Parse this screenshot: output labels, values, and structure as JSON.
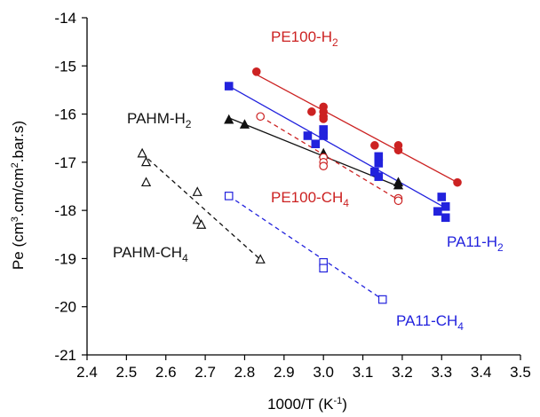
{
  "chart_data": {
    "type": "scatter",
    "xlabel": "1000/T (K-1)",
    "ylabel": "Pe (cm3.cm/cm2.bar.s)",
    "xlim": [
      2.4,
      3.5
    ],
    "ylim": [
      -21,
      -14
    ],
    "xticks": [
      "2.4",
      "2.5",
      "2.6",
      "2.7",
      "2.8",
      "2.9",
      "3.0",
      "3.1",
      "3.2",
      "3.3",
      "3.4",
      "3.5"
    ],
    "yticks": [
      "-14",
      "-15",
      "-16",
      "-17",
      "-18",
      "-19",
      "-20",
      "-21"
    ],
    "grid": false,
    "legend": "none",
    "series": [
      {
        "name": "PE100-H2",
        "label_main": "PE100-H",
        "label_sub": "2",
        "color": "#cc2222",
        "marker": "circle",
        "filled": true,
        "dashed": false,
        "points": [
          [
            2.83,
            -15.12
          ],
          [
            2.97,
            -15.95
          ],
          [
            3.0,
            -15.85
          ],
          [
            3.0,
            -15.95
          ],
          [
            3.0,
            -16.05
          ],
          [
            3.0,
            -16.1
          ],
          [
            3.13,
            -16.65
          ],
          [
            3.19,
            -16.65
          ],
          [
            3.19,
            -16.75
          ],
          [
            3.34,
            -17.42
          ]
        ],
        "fit": [
          [
            2.83,
            -15.18
          ],
          [
            3.34,
            -17.42
          ]
        ]
      },
      {
        "name": "PA11-H2",
        "label_main": "PA11-H",
        "label_sub": "2",
        "color": "#2222dd",
        "marker": "square",
        "filled": true,
        "dashed": false,
        "points": [
          [
            2.76,
            -15.42
          ],
          [
            2.96,
            -16.45
          ],
          [
            2.98,
            -16.62
          ],
          [
            3.0,
            -16.32
          ],
          [
            3.0,
            -16.45
          ],
          [
            3.14,
            -16.88
          ],
          [
            3.14,
            -17.02
          ],
          [
            3.13,
            -17.2
          ],
          [
            3.14,
            -17.3
          ],
          [
            3.3,
            -17.72
          ],
          [
            3.29,
            -18.02
          ],
          [
            3.31,
            -17.92
          ],
          [
            3.31,
            -18.15
          ]
        ],
        "fit": [
          [
            2.76,
            -15.42
          ],
          [
            3.31,
            -17.95
          ]
        ]
      },
      {
        "name": "PAHM-H2",
        "label_main": "PAHM-H",
        "label_sub": "2",
        "color": "#111111",
        "marker": "triangle",
        "filled": true,
        "dashed": false,
        "points": [
          [
            2.76,
            -16.12
          ],
          [
            2.8,
            -16.22
          ],
          [
            3.0,
            -16.82
          ],
          [
            3.19,
            -17.42
          ],
          [
            3.19,
            -17.48
          ]
        ],
        "fit": [
          [
            2.76,
            -16.08
          ],
          [
            3.19,
            -17.5
          ]
        ]
      },
      {
        "name": "PE100-CH4",
        "label_main": "PE100-CH",
        "label_sub": "4",
        "color": "#cc2222",
        "marker": "circle",
        "filled": false,
        "dashed": true,
        "points": [
          [
            2.84,
            -16.05
          ],
          [
            3.0,
            -16.9
          ],
          [
            3.0,
            -17.0
          ],
          [
            3.0,
            -17.08
          ],
          [
            3.19,
            -17.75
          ],
          [
            3.19,
            -17.8
          ]
        ],
        "fit": [
          [
            2.84,
            -16.05
          ],
          [
            3.19,
            -17.78
          ]
        ]
      },
      {
        "name": "PA11-CH4",
        "label_main": "PA11-CH",
        "label_sub": "4",
        "color": "#2222dd",
        "marker": "square",
        "filled": false,
        "dashed": true,
        "points": [
          [
            2.76,
            -17.7
          ],
          [
            3.0,
            -19.08
          ],
          [
            3.0,
            -19.2
          ],
          [
            3.15,
            -19.85
          ]
        ],
        "fit": [
          [
            2.76,
            -17.7
          ],
          [
            3.15,
            -19.85
          ]
        ]
      },
      {
        "name": "PAHM-CH4",
        "label_main": "PAHM-CH",
        "label_sub": "4",
        "color": "#111111",
        "marker": "triangle",
        "filled": false,
        "dashed": true,
        "points": [
          [
            2.54,
            -16.82
          ],
          [
            2.55,
            -17.0
          ],
          [
            2.55,
            -17.42
          ],
          [
            2.68,
            -17.62
          ],
          [
            2.68,
            -18.2
          ],
          [
            2.69,
            -18.3
          ],
          [
            2.84,
            -19.02
          ]
        ],
        "fit": [
          [
            2.54,
            -16.82
          ],
          [
            2.84,
            -19.02
          ]
        ]
      }
    ]
  }
}
